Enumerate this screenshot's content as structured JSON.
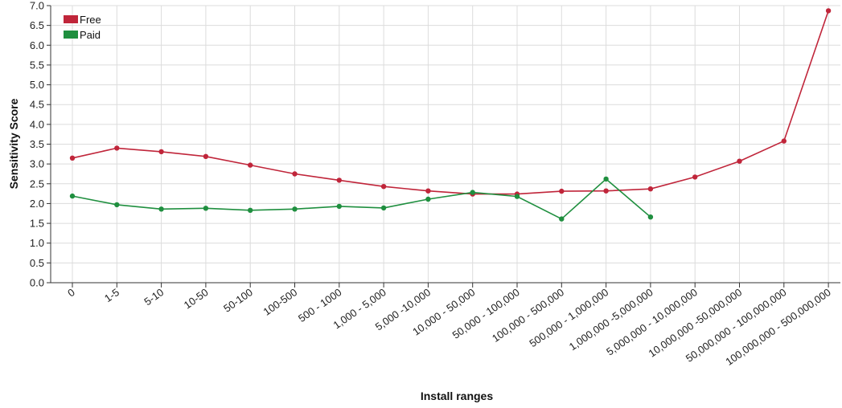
{
  "chart_data": {
    "type": "line",
    "title": "",
    "xlabel": "Install ranges",
    "ylabel": "Sensitivity Score",
    "ylim": [
      0,
      7
    ],
    "yticks": [
      "0.0",
      "0.5",
      "1.0",
      "1.5",
      "2.0",
      "2.5",
      "3.0",
      "3.5",
      "4.0",
      "4.5",
      "5.0",
      "5.5",
      "6.0",
      "6.5",
      "7.0"
    ],
    "grid": true,
    "legend_position": "top-left",
    "categories": [
      "0",
      "1-5",
      "5-10",
      "10-50",
      "50-100",
      "100-500",
      "500 - 1000",
      "1,000 - 5,000",
      "5,000 -10,000",
      "10,000 - 50,000",
      "50,000 - 100,000",
      "100,000 - 500,000",
      "500,000 - 1,000,000",
      "1,000,000 -5,000,000",
      "5,000,000 - 10,000,000",
      "10,000,000 -50,000,000",
      "50,000,000 - 100,000,000",
      "100,000,000 - 500,000,000"
    ],
    "series": [
      {
        "name": "Free",
        "color": "#c0253a",
        "values": [
          3.15,
          3.4,
          3.31,
          3.19,
          2.97,
          2.75,
          2.59,
          2.43,
          2.32,
          2.24,
          2.24,
          2.31,
          2.32,
          2.37,
          2.67,
          3.07,
          3.58,
          6.87
        ]
      },
      {
        "name": "Paid",
        "color": "#1f8f3f",
        "values": [
          2.19,
          1.97,
          1.86,
          1.88,
          1.83,
          1.86,
          1.93,
          1.89,
          2.11,
          2.28,
          2.18,
          1.61,
          2.62,
          1.66,
          null,
          null,
          null,
          null
        ]
      }
    ]
  }
}
